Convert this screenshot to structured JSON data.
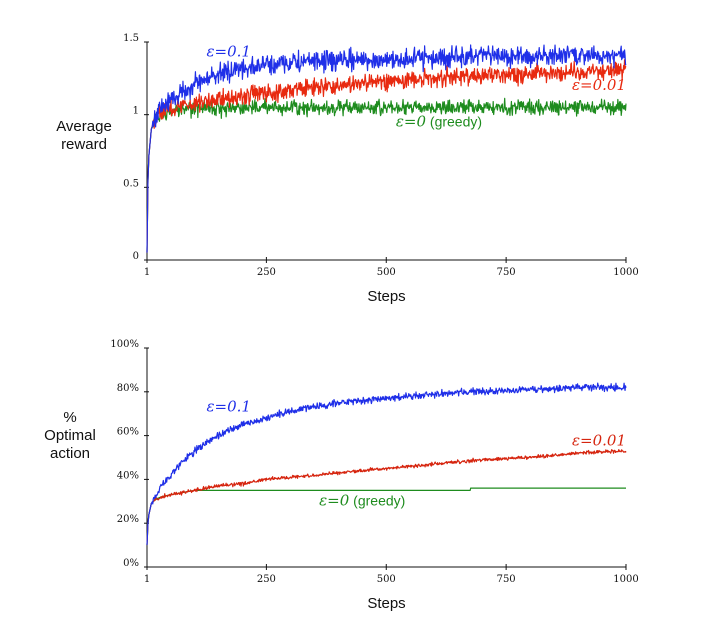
{
  "chart_data": [
    {
      "type": "line",
      "xlabel": "Steps",
      "ylabel": [
        "Average",
        "reward"
      ],
      "xlim": [
        1,
        1000
      ],
      "ylim": [
        0,
        1.5
      ],
      "xticks": [
        {
          "value": 1,
          "label": "1"
        },
        {
          "value": 250,
          "label": "250"
        },
        {
          "value": 500,
          "label": "500"
        },
        {
          "value": 750,
          "label": "750"
        },
        {
          "value": 1000,
          "label": "1000"
        }
      ],
      "yticks": [
        {
          "value": 0,
          "label": "0"
        },
        {
          "value": 0.5,
          "label": "0.5"
        },
        {
          "value": 1,
          "label": "1"
        },
        {
          "value": 1.5,
          "label": "1.5"
        }
      ],
      "grid": false,
      "series": [
        {
          "name": "ε=0.1",
          "label_text": "ε=0.1",
          "color": "#1f2fe8",
          "label_at": [
            125,
            1.4
          ],
          "label_anchor": "start",
          "noise": 0.035,
          "x": [
            1,
            3,
            5,
            10,
            20,
            30,
            50,
            75,
            100,
            150,
            200,
            250,
            300,
            400,
            500,
            600,
            700,
            800,
            900,
            1000
          ],
          "y": [
            0.05,
            0.55,
            0.72,
            0.9,
            1.0,
            1.05,
            1.1,
            1.16,
            1.21,
            1.28,
            1.32,
            1.34,
            1.36,
            1.37,
            1.38,
            1.39,
            1.4,
            1.4,
            1.41,
            1.41
          ]
        },
        {
          "name": "ε=0.01",
          "label_text": "ε=0.01",
          "color": "#e82a10",
          "label_at": [
            1000,
            1.17
          ],
          "label_anchor": "end",
          "noise": 0.03,
          "x": [
            1,
            3,
            5,
            10,
            20,
            30,
            50,
            75,
            100,
            150,
            200,
            250,
            300,
            400,
            500,
            600,
            700,
            800,
            900,
            1000
          ],
          "y": [
            0.05,
            0.55,
            0.72,
            0.9,
            1.0,
            1.02,
            1.04,
            1.06,
            1.08,
            1.11,
            1.13,
            1.15,
            1.17,
            1.2,
            1.23,
            1.25,
            1.27,
            1.28,
            1.3,
            1.31
          ]
        },
        {
          "name": "ε=0 (greedy)",
          "label_text": "ε=0",
          "label_suffix": " (greedy)",
          "color": "#1e8c1e",
          "label_at": [
            520,
            0.92
          ],
          "label_anchor": "start",
          "noise": 0.025,
          "x": [
            1,
            3,
            5,
            10,
            20,
            30,
            50,
            75,
            100,
            200,
            300,
            400,
            500,
            600,
            700,
            800,
            900,
            1000
          ],
          "y": [
            0.05,
            0.55,
            0.72,
            0.9,
            0.99,
            1.01,
            1.02,
            1.03,
            1.04,
            1.05,
            1.05,
            1.05,
            1.05,
            1.05,
            1.05,
            1.05,
            1.05,
            1.05
          ]
        }
      ]
    },
    {
      "type": "line",
      "xlabel": "Steps",
      "ylabel": [
        "%",
        "Optimal",
        "action"
      ],
      "xlim": [
        1,
        1000
      ],
      "ylim": [
        0,
        100
      ],
      "xticks": [
        {
          "value": 1,
          "label": "1"
        },
        {
          "value": 250,
          "label": "250"
        },
        {
          "value": 500,
          "label": "500"
        },
        {
          "value": 750,
          "label": "750"
        },
        {
          "value": 1000,
          "label": "1000"
        }
      ],
      "yticks": [
        {
          "value": 0,
          "label": "0%"
        },
        {
          "value": 20,
          "label": "20%"
        },
        {
          "value": 40,
          "label": "40%"
        },
        {
          "value": 60,
          "label": "60%"
        },
        {
          "value": 80,
          "label": "80%"
        },
        {
          "value": 100,
          "label": "100%"
        }
      ],
      "grid": false,
      "series": [
        {
          "name": "ε=0.1",
          "label_text": "ε=0.1",
          "color": "#1f2fe8",
          "label_at": [
            125,
            71
          ],
          "label_anchor": "start",
          "noise": 0.8,
          "x": [
            1,
            3,
            5,
            10,
            20,
            30,
            50,
            75,
            100,
            150,
            200,
            250,
            300,
            400,
            500,
            600,
            700,
            800,
            900,
            1000
          ],
          "y": [
            10,
            20,
            24,
            29,
            33,
            37,
            42,
            48,
            53,
            60,
            65,
            68,
            71,
            75,
            77,
            79,
            80,
            81,
            82,
            82
          ]
        },
        {
          "name": "ε=0.01",
          "label_text": "ε=0.01",
          "color": "#d6250f",
          "label_at": [
            1000,
            55.5
          ],
          "label_anchor": "end",
          "noise": 0.4,
          "x": [
            1,
            3,
            5,
            10,
            20,
            30,
            50,
            75,
            100,
            150,
            200,
            250,
            300,
            400,
            500,
            600,
            700,
            800,
            900,
            1000
          ],
          "y": [
            10,
            20,
            24,
            29,
            31,
            32,
            33,
            34,
            35,
            37,
            38,
            40,
            41,
            43,
            45,
            47,
            49,
            50,
            52,
            53
          ]
        },
        {
          "name": "ε=0 (greedy)",
          "label_text": "ε=0",
          "label_suffix": " (greedy)",
          "color": "#1e8c1e",
          "label_at": [
            360,
            28
          ],
          "label_anchor": "start",
          "noise": 0,
          "x": [
            1,
            3,
            5,
            10,
            20,
            30,
            50,
            75,
            100,
            150,
            200,
            300,
            400,
            500,
            600,
            675,
            676,
            700,
            800,
            900,
            1000
          ],
          "y": [
            10,
            20,
            24,
            29,
            31,
            32,
            33,
            34,
            35,
            35,
            35,
            35,
            35,
            35,
            35,
            35,
            36,
            36,
            36,
            36,
            36
          ]
        }
      ]
    }
  ]
}
